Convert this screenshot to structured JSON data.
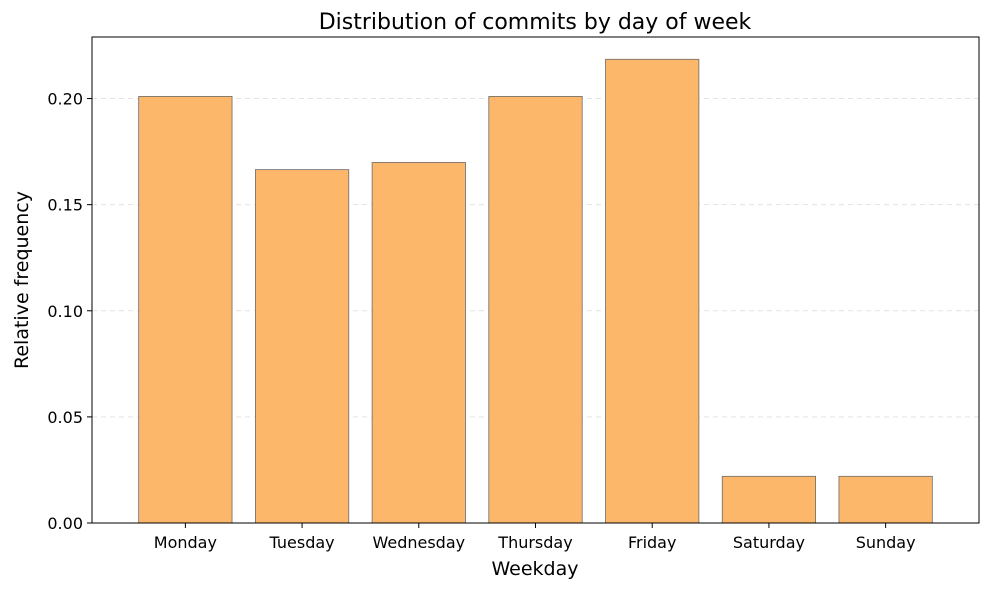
{
  "chart_data": {
    "type": "bar",
    "title": "Distribution of commits by day of week",
    "xlabel": "Weekday",
    "ylabel": "Relative frequency",
    "categories": [
      "Monday",
      "Tuesday",
      "Wednesday",
      "Thursday",
      "Friday",
      "Saturday",
      "Sunday"
    ],
    "values": [
      0.201,
      0.1665,
      0.1699,
      0.201,
      0.2185,
      0.022,
      0.022
    ],
    "ylim": [
      0,
      0.229
    ],
    "yticks": [
      0.0,
      0.05,
      0.1,
      0.15,
      0.2
    ],
    "ytick_labels": [
      "0.00",
      "0.05",
      "0.10",
      "0.15",
      "0.20"
    ],
    "grid": "y-dashed",
    "legend": "none",
    "colors": {
      "bar_fill": "#fdb76b",
      "bar_edge": "#6b6b6b",
      "grid": "#e3e3e3",
      "axis": "#000000"
    }
  }
}
